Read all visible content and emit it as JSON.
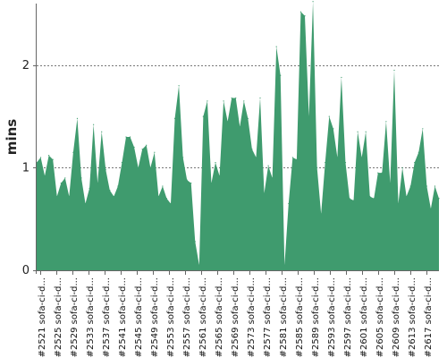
{
  "chart_data": {
    "type": "area",
    "ylabel": "mins",
    "ylim": [
      0,
      2.6
    ],
    "yticks": [
      0,
      1,
      2
    ],
    "grid": "horizontal dotted",
    "fill_color": "#3f9b6e",
    "x_tick_labels": [
      "#2521 sofa-ci-d...",
      "#2525 sofa-ci-d...",
      "#2529 sofa-ci-d...",
      "#2533 sofa-ci-d...",
      "#2537 sofa-ci-d...",
      "#2541 sofa-ci-d...",
      "#2545 sofa-ci-d...",
      "#2549 sofa-ci-d...",
      "#2553 sofa-ci-d...",
      "#2557 sofa-ci-d...",
      "#2561 sofa-ci-d...",
      "#2565 sofa-ci-d...",
      "#2569 sofa-ci-d...",
      "#2573 sofa-ci-d...",
      "#2577 sofa-ci-d...",
      "#2581 sofa-ci-d...",
      "#2585 sofa-ci-d...",
      "#2589 sofa-ci-d...",
      "#2593 sofa-ci-d...",
      "#2597 sofa-ci-d...",
      "#2601 sofa-ci-d...",
      "#2605 sofa-ci-d...",
      "#2609 sofa-ci-d...",
      "#2613 sofa-ci-d...",
      "#2617 sofa-ci-d..."
    ],
    "series": [
      {
        "values": [
          1.05,
          1.1,
          0.92,
          1.12,
          1.08,
          0.72,
          0.85,
          0.9,
          0.72,
          1.15,
          1.48,
          0.9,
          0.65,
          0.8,
          1.42,
          0.85,
          1.35,
          0.98,
          0.78,
          0.72,
          0.82,
          1.05,
          1.3,
          1.3,
          1.2,
          1.0,
          1.18,
          1.22,
          1.0,
          1.15,
          0.72,
          0.82,
          0.7,
          0.65,
          1.48,
          1.8,
          1.1,
          0.88,
          0.85,
          0.28,
          0.05,
          1.5,
          1.65,
          0.85,
          1.05,
          0.92,
          1.65,
          1.45,
          1.68,
          1.68,
          1.4,
          1.65,
          1.48,
          1.18,
          1.1,
          1.68,
          0.75,
          1.02,
          0.9,
          2.18,
          1.9,
          0.05,
          0.65,
          1.1,
          1.08,
          2.52,
          2.48,
          1.5,
          2.62,
          1.0,
          0.55,
          1.05,
          1.5,
          1.38,
          1.1,
          1.88,
          1.05,
          0.7,
          0.68,
          1.35,
          1.1,
          1.35,
          0.72,
          0.7,
          0.95,
          0.95,
          1.45,
          0.85,
          1.95,
          0.65,
          1.0,
          0.72,
          0.82,
          1.05,
          1.15,
          1.38,
          0.82,
          0.6,
          0.82,
          0.7
        ]
      }
    ]
  }
}
